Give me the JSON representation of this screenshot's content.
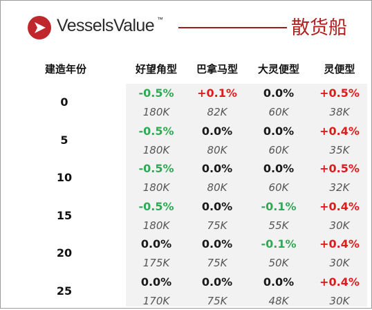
{
  "header": {
    "brand_name": "VesselsValue",
    "brand_tm": "™",
    "title": "散货船"
  },
  "table": {
    "age_header": "建造年份",
    "columns": [
      "好望角型",
      "巴拿马型",
      "大灵便型",
      "灵便型"
    ],
    "rows": [
      {
        "age": "0",
        "changes": [
          "-0.5%",
          "+0.1%",
          "0.0%",
          "+0.5%"
        ],
        "values": [
          "180K",
          "82K",
          "60K",
          "38K"
        ]
      },
      {
        "age": "5",
        "changes": [
          "-0.5%",
          "0.0%",
          "0.0%",
          "+0.4%"
        ],
        "values": [
          "180K",
          "80K",
          "60K",
          "35K"
        ]
      },
      {
        "age": "10",
        "changes": [
          "-0.5%",
          "0.0%",
          "0.0%",
          "+0.5%"
        ],
        "values": [
          "180K",
          "80K",
          "60K",
          "32K"
        ]
      },
      {
        "age": "15",
        "changes": [
          "-0.5%",
          "0.0%",
          "-0.1%",
          "+0.4%"
        ],
        "values": [
          "180K",
          "75K",
          "55K",
          "30K"
        ]
      },
      {
        "age": "20",
        "changes": [
          "0.0%",
          "0.0%",
          "-0.1%",
          "+0.4%"
        ],
        "values": [
          "175K",
          "75K",
          "50K",
          "30K"
        ]
      },
      {
        "age": "25",
        "changes": [
          "0.0%",
          "0.0%",
          "0.0%",
          "+0.4%"
        ],
        "values": [
          "170K",
          "75K",
          "48K",
          "30K"
        ]
      }
    ]
  },
  "colors": {
    "brand_red": "#b21f1f",
    "negative_green": "#2eaa55",
    "positive_red": "#e01b1b",
    "neutral": "#1a1a1a"
  }
}
